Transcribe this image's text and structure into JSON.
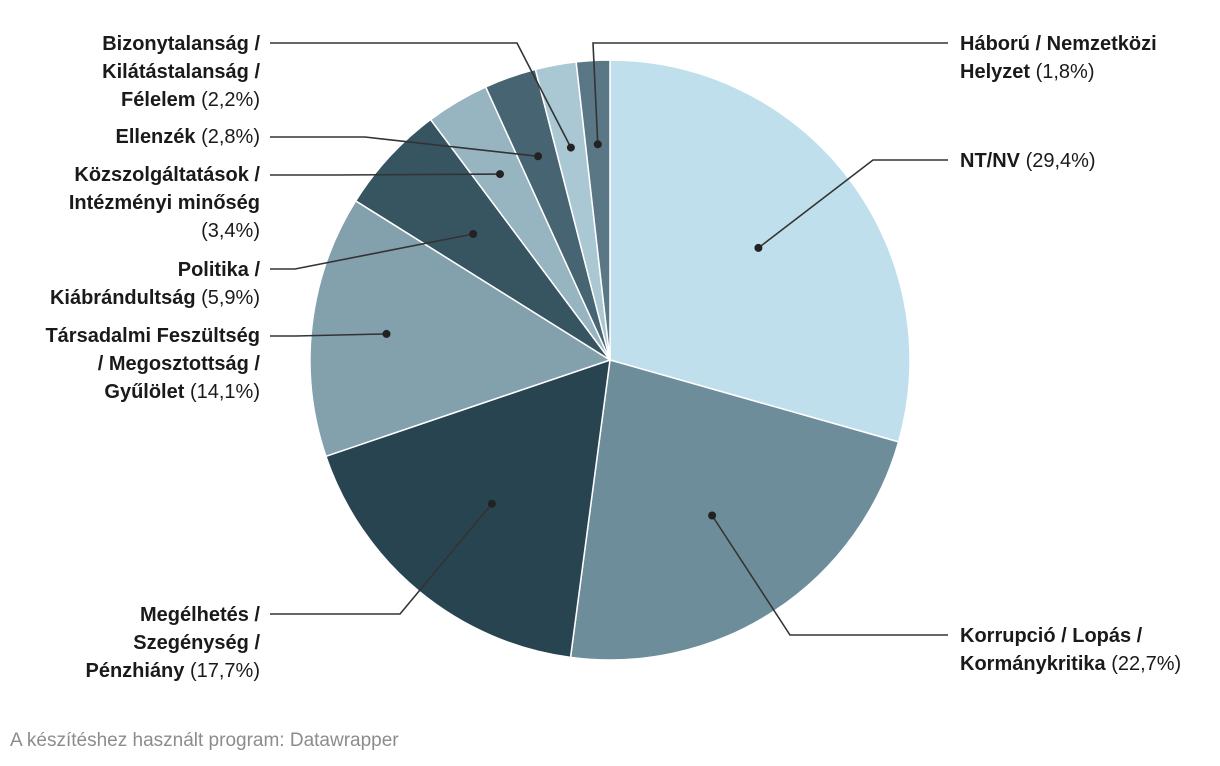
{
  "chart_data": {
    "type": "pie",
    "title": "",
    "slices": [
      {
        "label": "NT/NV",
        "value": 29.4,
        "display": "(29,4%)",
        "color": "#c0dfec"
      },
      {
        "label": "Korrupció / Lopás / Kormánykritika",
        "value": 22.7,
        "display": "(22,7%)",
        "color": "#6e8d9a"
      },
      {
        "label": "Megélhetés / Szegénység / Pénzhiány",
        "value": 17.7,
        "display": "(17,7%)",
        "color": "#284451"
      },
      {
        "label": "Társadalmi Feszültség / Megosztottság / Gyűlölet",
        "value": 14.1,
        "display": "(14,1%)",
        "color": "#83a0ad"
      },
      {
        "label": "Politika / Kiábrándultság",
        "value": 5.9,
        "display": "(5,9%)",
        "color": "#375461"
      },
      {
        "label": "Közszolgáltatások / Intézményi minőség",
        "value": 3.4,
        "display": "(3,4%)",
        "color": "#97b4c1"
      },
      {
        "label": "Ellenzék",
        "value": 2.8,
        "display": "(2,8%)",
        "color": "#466471"
      },
      {
        "label": "Bizonytalanság / Kilátástalanság / Félelem",
        "value": 2.2,
        "display": "(2,2%)",
        "color": "#aac7d4"
      },
      {
        "label": "Háború / Nemzetközi Helyzet",
        "value": 1.8,
        "display": "(1,8%)",
        "color": "#597784"
      }
    ]
  },
  "labels": {
    "nt_nv": {
      "lines": [
        "NT/NV"
      ],
      "pct": "(29,4%)"
    },
    "korrupcio": {
      "lines": [
        "Korrupció / Lopás /",
        "Kormánykritika"
      ],
      "pct": "(22,7%)"
    },
    "megelhetes": {
      "lines": [
        "Megélhetés /",
        "Szegénység /",
        "Pénzhiány"
      ],
      "pct": "(17,7%)"
    },
    "tarsadalmi": {
      "lines": [
        "Társadalmi Feszültség",
        "/ Megosztottság /",
        "Gyűlölet"
      ],
      "pct": "(14,1%)"
    },
    "politika": {
      "lines": [
        "Politika /",
        "Kiábrándultság"
      ],
      "pct": "(5,9%)"
    },
    "kozszolg": {
      "lines": [
        "Közszolgáltatások /",
        "Intézményi minőség"
      ],
      "pct": "(3,4%)"
    },
    "ellenzek": {
      "lines": [
        "Ellenzék"
      ],
      "pct": "(2,8%)"
    },
    "bizonytalansag": {
      "lines": [
        "Bizonytalanság /",
        "Kilátástalanság /",
        "Félelem"
      ],
      "pct": "(2,2%)"
    },
    "haboru": {
      "lines": [
        "Háború / Nemzetközi",
        "Helyzet"
      ],
      "pct": "(1,8%)"
    }
  },
  "credit": "A készítéshez használt program: Datawrapper"
}
